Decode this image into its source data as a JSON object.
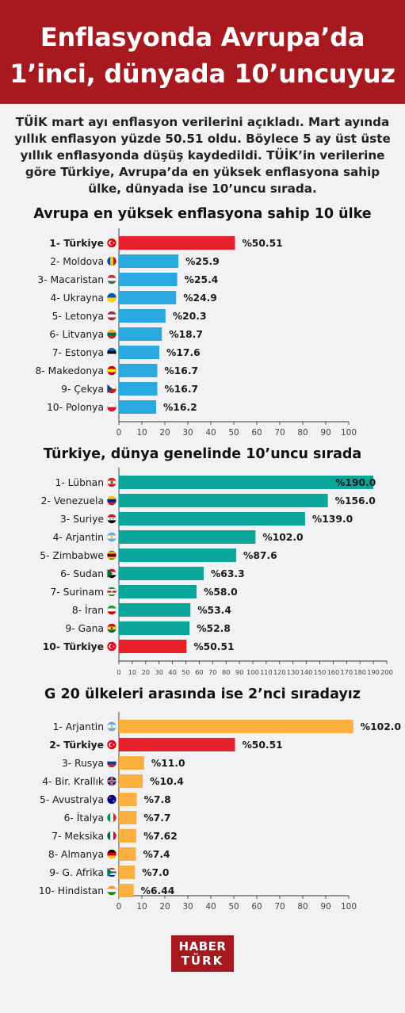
{
  "header": {
    "line1": "Enflasyonda Avrupa’da",
    "line2": "1’inci, dünyada 10’uncuyuz"
  },
  "intro": "TÜİK mart ayı enflasyon verilerini açıkladı. Mart ayında yıllık enflasyon yüzde 50.51 oldu. Böylece 5 ay üst üste yıllık enflasyonda düşüş kaydedildi. TÜİK’in verilerine göre Türkiye, Avrupa’da en yüksek enflasyona sahip ülke, dünyada ise 10’uncu sırada.",
  "logo": {
    "line1": "HABER",
    "line2": "TÜRK"
  },
  "colors": {
    "header": "#a8181f",
    "highlight": "#e8202a",
    "europe": "#2aa9e0",
    "world": "#0aa699",
    "g20": "#fbb040"
  },
  "chart_data": [
    {
      "type": "bar",
      "orientation": "horizontal",
      "title": "Avrupa en yüksek enflasyona sahip 10 ülke",
      "categories": [
        "1- Türkiye",
        "2- Moldova",
        "3- Macaristan",
        "4- Ukrayna",
        "5- Letonya",
        "6- Litvanya",
        "7- Estonya",
        "8- Makedonya",
        "9- Çekya",
        "10- Polonya"
      ],
      "values": [
        50.51,
        25.9,
        25.4,
        24.9,
        20.3,
        18.7,
        17.6,
        16.7,
        16.7,
        16.2
      ],
      "value_labels": [
        "%50.51",
        "%25.9",
        "%25.4",
        "%24.9",
        "%20.3",
        "%18.7",
        "%17.6",
        "%16.7",
        "%16.7",
        "%16.2"
      ],
      "highlight": [
        0
      ],
      "flags": [
        "tr",
        "md",
        "hu",
        "ua",
        "lv",
        "lt",
        "ee",
        "mk",
        "cz",
        "pl"
      ],
      "xlim": [
        0,
        100
      ],
      "ticks": [
        0,
        10,
        20,
        30,
        40,
        50,
        60,
        70,
        80,
        90,
        100
      ],
      "color": "europe"
    },
    {
      "type": "bar",
      "orientation": "horizontal",
      "title": "Türkiye, dünya genelinde 10’uncu sırada",
      "categories": [
        "1- Lübnan",
        "2- Venezuela",
        "3- Suriye",
        "4- Arjantin",
        "5- Zimbabwe",
        "6- Sudan",
        "7- Surinam",
        "8- İran",
        "9- Gana",
        "10- Türkiye"
      ],
      "values": [
        190.0,
        156.0,
        139.0,
        102.0,
        87.6,
        63.3,
        58.0,
        53.4,
        52.8,
        50.51
      ],
      "value_labels": [
        "%190.0",
        "%156.0",
        "%139.0",
        "%102.0",
        "%87.6",
        "%63.3",
        "%58.0",
        "%53.4",
        "%52.8",
        "%50.51"
      ],
      "highlight": [
        9
      ],
      "flags": [
        "lb",
        "ve",
        "sy",
        "ar",
        "zw",
        "sd",
        "sr",
        "ir",
        "gh",
        "tr"
      ],
      "xlim": [
        0,
        200
      ],
      "ticks": [
        0,
        10,
        20,
        30,
        40,
        50,
        60,
        70,
        80,
        90,
        100,
        110,
        120,
        130,
        140,
        150,
        160,
        170,
        180,
        190,
        200
      ],
      "color": "world"
    },
    {
      "type": "bar",
      "orientation": "horizontal",
      "title": "G 20 ülkeleri arasında ise 2’nci sıradayız",
      "categories": [
        "1- Arjantin",
        "2- Türkiye",
        "3- Rusya",
        "4- Bir. Krallık",
        "5- Avustralya",
        "6- İtalya",
        "7- Meksika",
        "8- Almanya",
        "9- G. Afrika",
        "10- Hindistan"
      ],
      "values": [
        102.0,
        50.51,
        11.0,
        10.4,
        7.8,
        7.7,
        7.62,
        7.4,
        7.0,
        6.44
      ],
      "value_labels": [
        "%102.0",
        "%50.51",
        "%11.0",
        "%10.4",
        "%7.8",
        "%7.7",
        "%7.62",
        "%7.4",
        "%7.0",
        "%6.44"
      ],
      "highlight": [
        1
      ],
      "flags": [
        "ar",
        "tr",
        "ru",
        "gb",
        "au",
        "it",
        "mx",
        "de",
        "za",
        "in"
      ],
      "xlim": [
        0,
        100
      ],
      "ticks": [
        0,
        10,
        20,
        30,
        40,
        50,
        60,
        70,
        80,
        90,
        100
      ],
      "color": "g20"
    }
  ]
}
